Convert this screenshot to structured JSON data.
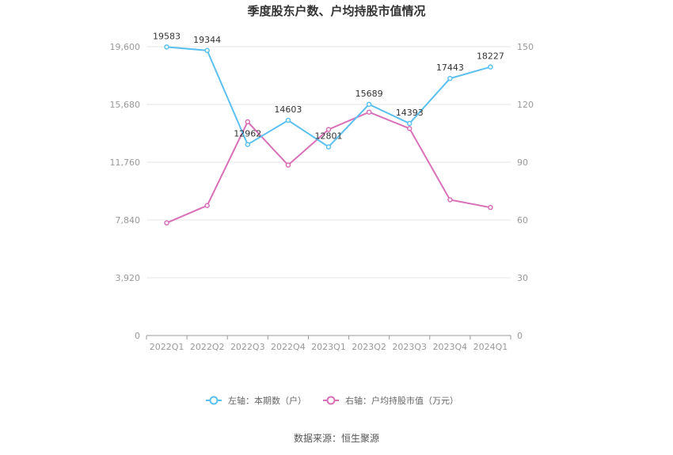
{
  "chart_data": {
    "type": "line",
    "title": "季度股东户数、户均持股市值情况",
    "categories": [
      "2022Q1",
      "2022Q2",
      "2022Q3",
      "2022Q4",
      "2023Q1",
      "2023Q2",
      "2023Q3",
      "2023Q4",
      "2024Q1"
    ],
    "y_left": {
      "ticks": [
        "0",
        "3,920",
        "7,840",
        "11,760",
        "15,680",
        "19,600"
      ],
      "min": 0,
      "max": 19600
    },
    "y_right": {
      "ticks": [
        "0",
        "30",
        "60",
        "90",
        "120",
        "150"
      ],
      "min": 0,
      "max": 150
    },
    "series": [
      {
        "name": "左轴：本期数（户）",
        "axis": "left",
        "color": "#5bc0f0",
        "values": [
          19583,
          19344,
          12962,
          14603,
          12801,
          15689,
          14393,
          17443,
          18227
        ],
        "labels": [
          "19583",
          "19344",
          "12962",
          "14603",
          "12801",
          "15689",
          "14393",
          "17443",
          "18227"
        ]
      },
      {
        "name": "右轴：户均持股市值（万元）",
        "axis": "right",
        "color": "#d870b8",
        "values": [
          58.5,
          67.5,
          111,
          88.5,
          107,
          116,
          107.5,
          70.5,
          66.5
        ]
      }
    ],
    "grid": true,
    "legend_position": "bottom"
  },
  "source": "数据来源：恒生聚源"
}
